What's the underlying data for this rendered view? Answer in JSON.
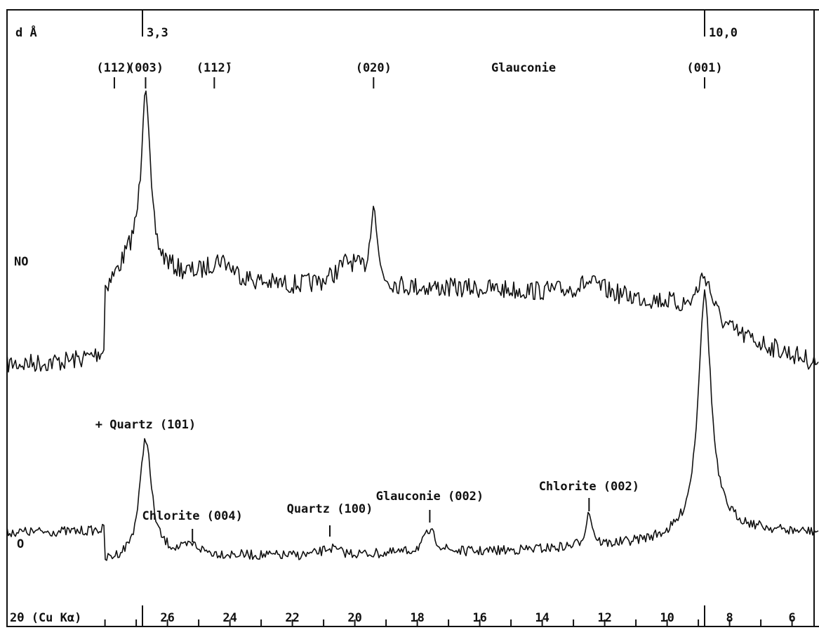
{
  "chart_data": {
    "type": "line",
    "x_axis": {
      "label": "2θ (Cu Kα)",
      "range": [
        28,
        5
      ],
      "ticks": [
        26,
        24,
        22,
        20,
        18,
        16,
        14,
        12,
        10,
        8,
        6
      ],
      "minor_step": 1
    },
    "d_axis": {
      "label": "d Å",
      "markers": [
        {
          "label": "3,3",
          "two_theta": 26.8
        },
        {
          "label": "10,0",
          "two_theta": 8.8
        }
      ]
    },
    "mineral_label": "Glauconie",
    "series": [
      {
        "name": "NO",
        "baseline": [
          [
            28,
            430
          ],
          [
            26,
            400
          ],
          [
            22,
            410
          ],
          [
            16,
            412
          ],
          [
            12,
            420
          ],
          [
            10,
            432
          ],
          [
            8,
            475
          ],
          [
            6,
            505
          ],
          [
            5,
            520
          ]
        ],
        "peaks": [
          {
            "x": 26.7,
            "height": 255,
            "width": 0.16
          },
          {
            "x": 19.4,
            "height": 115,
            "width": 0.12
          },
          {
            "x": 8.8,
            "height": 65,
            "width": 0.3
          },
          {
            "x": 27.1,
            "height": 50,
            "width": 0.7
          },
          {
            "x": 24.3,
            "height": 30,
            "width": 0.5
          },
          {
            "x": 20.2,
            "height": 35,
            "width": 0.5
          },
          {
            "x": 12.5,
            "height": 15,
            "width": 0.5
          }
        ],
        "noise": 14
      },
      {
        "name": "O",
        "baseline": [
          [
            28,
            800
          ],
          [
            26,
            790
          ],
          [
            22,
            792
          ],
          [
            16,
            786
          ],
          [
            12,
            778
          ],
          [
            10,
            768
          ],
          [
            8,
            752
          ],
          [
            6,
            758
          ],
          [
            5,
            758
          ]
        ],
        "peaks": [
          {
            "x": 26.7,
            "height": 170,
            "width": 0.22
          },
          {
            "x": 8.8,
            "height": 340,
            "width": 0.25
          },
          {
            "x": 12.5,
            "height": 48,
            "width": 0.13
          },
          {
            "x": 17.6,
            "height": 30,
            "width": 0.25
          },
          {
            "x": 20.8,
            "height": 10,
            "width": 0.3
          },
          {
            "x": 25.2,
            "height": 12,
            "width": 0.3
          }
        ],
        "noise": 7
      }
    ],
    "annotations": [
      {
        "text": "(112)",
        "two_theta": 27.7,
        "row": "top"
      },
      {
        "text": "(003)",
        "two_theta": 26.7,
        "row": "top"
      },
      {
        "text": "(112̄)",
        "two_theta": 24.5,
        "row": "top"
      },
      {
        "text": "(020)",
        "two_theta": 19.4,
        "row": "top"
      },
      {
        "text": "(001)",
        "two_theta": 8.8,
        "row": "top"
      },
      {
        "text": "+ Quartz (101)",
        "two_theta": 26.7,
        "row": "quartz101"
      },
      {
        "text": "Chlorite (004)",
        "two_theta": 25.2,
        "row": "chl004"
      },
      {
        "text": "Quartz (100)",
        "two_theta": 20.8,
        "row": "qz100"
      },
      {
        "text": "Glauconie (002)",
        "two_theta": 17.6,
        "row": "gl002"
      },
      {
        "text": "Chlorite (002)",
        "two_theta": 12.5,
        "row": "chl002"
      }
    ]
  }
}
